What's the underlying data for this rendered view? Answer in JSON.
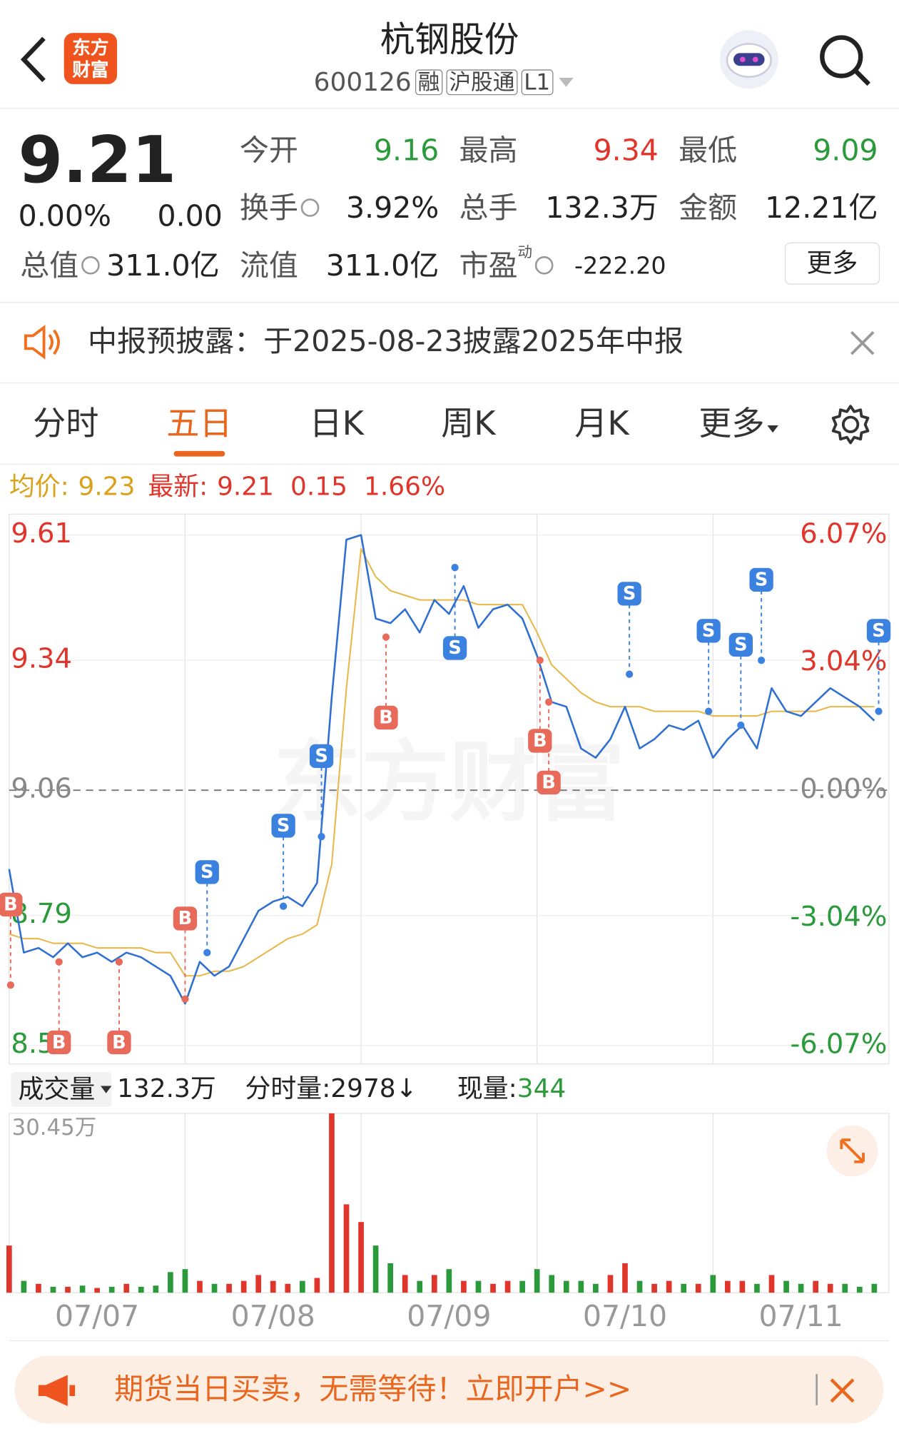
{
  "header": {
    "title": "杭钢股份",
    "code": "600126",
    "tags": [
      "融",
      "沪股通",
      "L1"
    ],
    "logo": [
      "东方",
      "财富"
    ]
  },
  "quote": {
    "price": "9.21",
    "change_pct": "0.00%",
    "change": "0.00",
    "more": "更多",
    "fields": [
      {
        "label": "今开",
        "value": "9.16",
        "color": "#2a9a3a"
      },
      {
        "label": "最高",
        "value": "9.34",
        "color": "#e0352b"
      },
      {
        "label": "最低",
        "value": "9.09",
        "color": "#2a9a3a"
      },
      {
        "label": "换手",
        "value": "3.92%",
        "info": true
      },
      {
        "label": "总手",
        "value": "132.3万"
      },
      {
        "label": "金额",
        "value": "12.21亿"
      },
      {
        "label": "总值",
        "value": "311.0亿",
        "info": true
      },
      {
        "label": "流值",
        "value": "311.0亿"
      },
      {
        "label": "市盈",
        "note": "动",
        "value": "-222.20",
        "info": true
      }
    ]
  },
  "notice": {
    "text": "中报预披露：于2025-08-23披露2025年中报"
  },
  "tabs": {
    "items": [
      "分时",
      "五日",
      "日K",
      "周K",
      "月K",
      "更多"
    ],
    "active": 1
  },
  "info": {
    "avg_label": "均价:",
    "avg": "9.23",
    "latest_label": "最新:",
    "latest": "9.21",
    "change": "0.15",
    "change_pct": "1.66%"
  },
  "watermark": "东方财富",
  "chart_data": [
    {
      "type": "line",
      "categories": [
        "07/07",
        "07/08",
        "07/09",
        "07/10",
        "07/11"
      ],
      "x": [
        0,
        1,
        2,
        3,
        4,
        5,
        6,
        7,
        8,
        9,
        10,
        11,
        12,
        13,
        14,
        15,
        16,
        17,
        18,
        19,
        20,
        21,
        22,
        23,
        24,
        25,
        26,
        27,
        28,
        29,
        30,
        31,
        32,
        33,
        34,
        35,
        36,
        37,
        38,
        39,
        40,
        41,
        42,
        43,
        44,
        45,
        46,
        47,
        48,
        49,
        50,
        51,
        52,
        53,
        54,
        55,
        56,
        57,
        58,
        59
      ],
      "xlim": [
        0,
        60
      ],
      "ylim": [
        8.47,
        9.655
      ],
      "yticks": [
        9.61,
        9.34,
        9.06,
        8.79,
        8.51
      ],
      "y2lim": [
        -6.51,
        6.57
      ],
      "y2ticks": [
        {
          "value": 6.07,
          "label": "6.07%"
        },
        {
          "value": 3.04,
          "label": "3.04%"
        },
        {
          "value": 0,
          "label": "0.00%"
        },
        {
          "value": -3.04,
          "label": "-3.04%"
        },
        {
          "value": -6.07,
          "label": "-6.07%"
        }
      ],
      "up_color": "#e0352b",
      "down_color": "#2a9a3a",
      "flat_color": "#888888",
      "series": [
        {
          "color": "#2f6fd1",
          "values": [
            8.89,
            8.71,
            8.72,
            8.7,
            8.73,
            8.7,
            8.71,
            8.69,
            8.71,
            8.7,
            8.68,
            8.66,
            8.6,
            8.69,
            8.66,
            8.68,
            8.74,
            8.8,
            8.82,
            8.83,
            8.81,
            8.86,
            9.26,
            9.6,
            9.61,
            9.43,
            9.42,
            9.45,
            9.4,
            9.47,
            9.44,
            9.5,
            9.41,
            9.45,
            9.46,
            9.43,
            9.35,
            9.25,
            9.24,
            9.15,
            9.13,
            9.17,
            9.24,
            9.15,
            9.17,
            9.2,
            9.19,
            9.21,
            9.13,
            9.17,
            9.2,
            9.15,
            9.28,
            9.23,
            9.22,
            9.25,
            9.28,
            9.26,
            9.24,
            9.21
          ]
        },
        {
          "color": "#e8b84a",
          "values": [
            8.75,
            8.74,
            8.74,
            8.73,
            8.73,
            8.73,
            8.72,
            8.72,
            8.72,
            8.72,
            8.71,
            8.71,
            8.66,
            8.66,
            8.67,
            8.67,
            8.68,
            8.7,
            8.72,
            8.74,
            8.75,
            8.77,
            8.9,
            9.28,
            9.58,
            9.52,
            9.49,
            9.48,
            9.47,
            9.47,
            9.47,
            9.47,
            9.46,
            9.46,
            9.46,
            9.46,
            9.4,
            9.33,
            9.3,
            9.27,
            9.25,
            9.24,
            9.24,
            9.24,
            9.23,
            9.23,
            9.23,
            9.23,
            9.22,
            9.22,
            9.22,
            9.22,
            9.23,
            9.23,
            9.23,
            9.23,
            9.24,
            9.24,
            9.24,
            9.24
          ]
        }
      ],
      "markers": [
        {
          "label": "B",
          "x": 0.1,
          "price": 8.64,
          "side": "above"
        },
        {
          "label": "B",
          "x": 3.4,
          "price": 8.69,
          "side": "below"
        },
        {
          "label": "B",
          "x": 7.5,
          "price": 8.69,
          "side": "below"
        },
        {
          "label": "B",
          "x": 12.0,
          "price": 8.61,
          "side": "above"
        },
        {
          "label": "S",
          "x": 13.5,
          "price": 8.71,
          "side": "above"
        },
        {
          "label": "S",
          "x": 18.7,
          "price": 8.81,
          "side": "above"
        },
        {
          "label": "S",
          "x": 21.3,
          "price": 8.96,
          "side": "above"
        },
        {
          "label": "B",
          "x": 25.7,
          "price": 9.39,
          "side": "below"
        },
        {
          "label": "S",
          "x": 30.4,
          "price": 9.54,
          "side": "below"
        },
        {
          "label": "B",
          "x": 36.2,
          "price": 9.34,
          "side": "below"
        },
        {
          "label": "B",
          "x": 36.8,
          "price": 9.25,
          "side": "below"
        },
        {
          "label": "S",
          "x": 42.3,
          "price": 9.31,
          "side": "above"
        },
        {
          "label": "S",
          "x": 47.7,
          "price": 9.23,
          "side": "above"
        },
        {
          "label": "S",
          "x": 49.9,
          "price": 9.2,
          "side": "above"
        },
        {
          "label": "S",
          "x": 51.3,
          "price": 9.34,
          "side": "above"
        },
        {
          "label": "S",
          "x": 59.3,
          "price": 9.23,
          "side": "above"
        }
      ]
    },
    {
      "type": "bar",
      "ylim": [
        0,
        30.45
      ],
      "yticks": [
        {
          "value": 30.45,
          "label": "30.45万"
        }
      ],
      "values": [
        8,
        2,
        1.5,
        1,
        1,
        1.2,
        0.8,
        1,
        1.5,
        1,
        1.2,
        3.5,
        4,
        2,
        1.5,
        1.5,
        2,
        3,
        2,
        1.5,
        2,
        2.5,
        30.45,
        15,
        12,
        8,
        5,
        3,
        2,
        3,
        4,
        2,
        2,
        1.5,
        2,
        2,
        4,
        3,
        2,
        2,
        1.5,
        3,
        5,
        2,
        1.5,
        2,
        1.5,
        1.5,
        3,
        2,
        2,
        1.5,
        3,
        2,
        1.5,
        2,
        1.5,
        1.5,
        1,
        1.5
      ]
    }
  ],
  "volume_header": {
    "label": "成交量",
    "total": "132.3万",
    "tick_label": "分时量:",
    "tick_value": "2978↓",
    "now_label": "现量:",
    "now_value": "344"
  },
  "banner": {
    "text": "期货当日买卖，无需等待！立即开户>>"
  }
}
